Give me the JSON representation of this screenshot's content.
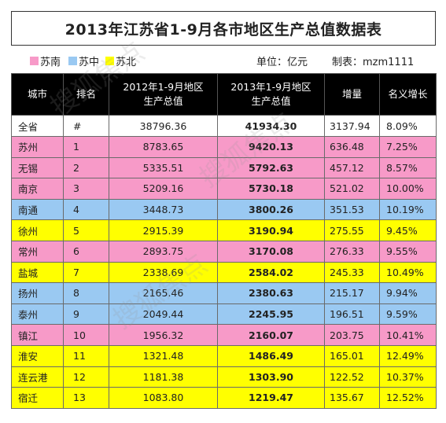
{
  "title": "2013年江苏省1-9月各市地区生产总值数据表",
  "legend": [
    {
      "label": "苏南",
      "color": "#f79ac8"
    },
    {
      "label": "苏中",
      "color": "#9ac9f2"
    },
    {
      "label": "苏北",
      "color": "#ffff00"
    }
  ],
  "unit": "单位：亿元",
  "maker": "制表：mzm1111",
  "headers": [
    "城市",
    "排名",
    "2012年1-9月地区\n生产总值",
    "2013年1-9月地区\n生产总值",
    "增量",
    "名义增长"
  ],
  "colors": {
    "苏南": "#f79ac8",
    "苏中": "#9ac9f2",
    "苏北": "#ffff00",
    "total": "#ffffff",
    "header_bg": "#000000"
  },
  "rows": [
    {
      "city": "全省",
      "rank": "#",
      "v2012": "38796.36",
      "v2013": "41934.30",
      "increase": "3137.94",
      "growth": "8.09%",
      "region": "total"
    },
    {
      "city": "苏州",
      "rank": "1",
      "v2012": "8783.65",
      "v2013": "9420.13",
      "increase": "636.48",
      "growth": "7.25%",
      "region": "苏南"
    },
    {
      "city": "无锡",
      "rank": "2",
      "v2012": "5335.51",
      "v2013": "5792.63",
      "increase": "457.12",
      "growth": "8.57%",
      "region": "苏南"
    },
    {
      "city": "南京",
      "rank": "3",
      "v2012": "5209.16",
      "v2013": "5730.18",
      "increase": "521.02",
      "growth": "10.00%",
      "region": "苏南"
    },
    {
      "city": "南通",
      "rank": "4",
      "v2012": "3448.73",
      "v2013": "3800.26",
      "increase": "351.53",
      "growth": "10.19%",
      "region": "苏中"
    },
    {
      "city": "徐州",
      "rank": "5",
      "v2012": "2915.39",
      "v2013": "3190.94",
      "increase": "275.55",
      "growth": "9.45%",
      "region": "苏北"
    },
    {
      "city": "常州",
      "rank": "6",
      "v2012": "2893.75",
      "v2013": "3170.08",
      "increase": "276.33",
      "growth": "9.55%",
      "region": "苏南"
    },
    {
      "city": "盐城",
      "rank": "7",
      "v2012": "2338.69",
      "v2013": "2584.02",
      "increase": "245.33",
      "growth": "10.49%",
      "region": "苏北"
    },
    {
      "city": "扬州",
      "rank": "8",
      "v2012": "2165.46",
      "v2013": "2380.63",
      "increase": "215.17",
      "growth": "9.94%",
      "region": "苏中"
    },
    {
      "city": "泰州",
      "rank": "9",
      "v2012": "2049.44",
      "v2013": "2245.95",
      "increase": "196.51",
      "growth": "9.59%",
      "region": "苏中"
    },
    {
      "city": "镇江",
      "rank": "10",
      "v2012": "1956.32",
      "v2013": "2160.07",
      "increase": "203.75",
      "growth": "10.41%",
      "region": "苏南"
    },
    {
      "city": "淮安",
      "rank": "11",
      "v2012": "1321.48",
      "v2013": "1486.49",
      "increase": "165.01",
      "growth": "12.49%",
      "region": "苏北"
    },
    {
      "city": "连云港",
      "rank": "12",
      "v2012": "1181.38",
      "v2013": "1303.90",
      "increase": "122.52",
      "growth": "10.37%",
      "region": "苏北"
    },
    {
      "city": "宿迁",
      "rank": "13",
      "v2012": "1083.80",
      "v2013": "1219.47",
      "increase": "135.67",
      "growth": "12.52%",
      "region": "苏北"
    }
  ]
}
